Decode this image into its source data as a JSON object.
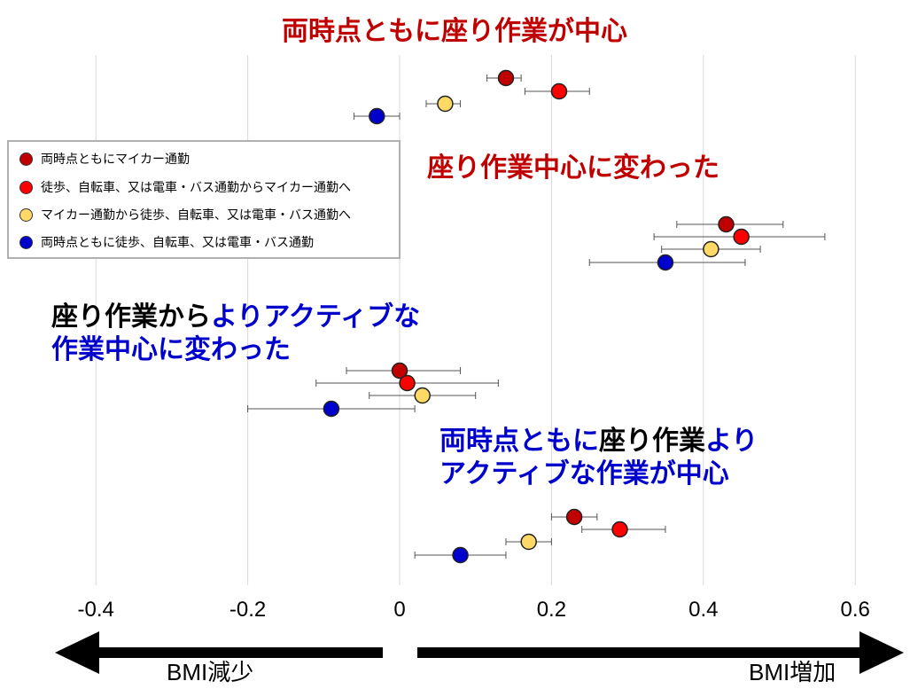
{
  "colors": {
    "s1": "#c00000",
    "s2": "#ff0000",
    "s3": "#ffd966",
    "s4": "#0000cc",
    "title_red": "#c00000",
    "title_blue": "#0000cc"
  },
  "groups": {
    "g1": {
      "title": "両時点ともに座り作業が中心"
    },
    "g2": {
      "title": "座り作業中心に変わった"
    },
    "g3": {
      "line1_part1": "座り作業から",
      "line1_part2": "よりアクティブな",
      "line2": "作業中心に変わった"
    },
    "g4": {
      "line1_part1": "両時点ともに",
      "line1_part2": "座り作業",
      "line1_part3": "より",
      "line2": "アクティブな作業が中心"
    }
  },
  "legend": [
    {
      "label": "両時点ともにマイカー通勤"
    },
    {
      "label": "徒歩、自転車、又は電車・バス通勤からマイカー通勤へ"
    },
    {
      "label": "マイカー通勤から徒歩、自転車、又は電車・バス通勤へ"
    },
    {
      "label": "両時点ともに徒歩、自転車、又は電車・バス通勤"
    }
  ],
  "arrows": {
    "left_label": "BMI減少",
    "right_label": "BMI増加"
  },
  "chart_data": {
    "type": "scatter",
    "xlim": [
      -0.5,
      0.65
    ],
    "x_ticks": [
      "-0.4",
      "-0.2",
      "0",
      "0.2",
      "0.4",
      "0.6"
    ],
    "x_tick_values": [
      -0.4,
      -0.2,
      0,
      0.2,
      0.4,
      0.6
    ],
    "grid": "vertical",
    "legend_position": "top-left",
    "series": [
      {
        "name": "両時点ともにマイカー通勤",
        "color": "#c00000"
      },
      {
        "name": "徒歩、自転車、又は電車・バス通勤からマイカー通勤へ",
        "color": "#ff0000"
      },
      {
        "name": "マイカー通勤から徒歩、自転車、又は電車・バス通勤へ",
        "color": "#ffd966"
      },
      {
        "name": "両時点ともに徒歩、自転車、又は電車・バス通勤",
        "color": "#0000cc"
      }
    ],
    "groups": [
      {
        "name": "両時点ともに座り作業が中心",
        "points": [
          {
            "series": 0,
            "x": 0.14,
            "lo": 0.115,
            "hi": 0.16
          },
          {
            "series": 1,
            "x": 0.21,
            "lo": 0.165,
            "hi": 0.25
          },
          {
            "series": 2,
            "x": 0.06,
            "lo": 0.035,
            "hi": 0.08
          },
          {
            "series": 3,
            "x": -0.03,
            "lo": -0.06,
            "hi": 0.0
          }
        ]
      },
      {
        "name": "座り作業中心に変わった",
        "points": [
          {
            "series": 0,
            "x": 0.43,
            "lo": 0.365,
            "hi": 0.505
          },
          {
            "series": 1,
            "x": 0.45,
            "lo": 0.335,
            "hi": 0.56
          },
          {
            "series": 2,
            "x": 0.41,
            "lo": 0.345,
            "hi": 0.475
          },
          {
            "series": 3,
            "x": 0.35,
            "lo": 0.25,
            "hi": 0.455
          }
        ]
      },
      {
        "name": "座り作業からよりアクティブな作業中心に変わった",
        "points": [
          {
            "series": 0,
            "x": 0.0,
            "lo": -0.07,
            "hi": 0.08
          },
          {
            "series": 1,
            "x": 0.01,
            "lo": -0.11,
            "hi": 0.13
          },
          {
            "series": 2,
            "x": 0.03,
            "lo": -0.04,
            "hi": 0.1
          },
          {
            "series": 3,
            "x": -0.09,
            "lo": -0.2,
            "hi": 0.02
          }
        ]
      },
      {
        "name": "両時点ともに座り作業よりアクティブな作業が中心",
        "points": [
          {
            "series": 0,
            "x": 0.23,
            "lo": 0.2,
            "hi": 0.26
          },
          {
            "series": 1,
            "x": 0.29,
            "lo": 0.24,
            "hi": 0.35
          },
          {
            "series": 2,
            "x": 0.17,
            "lo": 0.14,
            "hi": 0.2
          },
          {
            "series": 3,
            "x": 0.08,
            "lo": 0.02,
            "hi": 0.14
          }
        ]
      }
    ]
  }
}
